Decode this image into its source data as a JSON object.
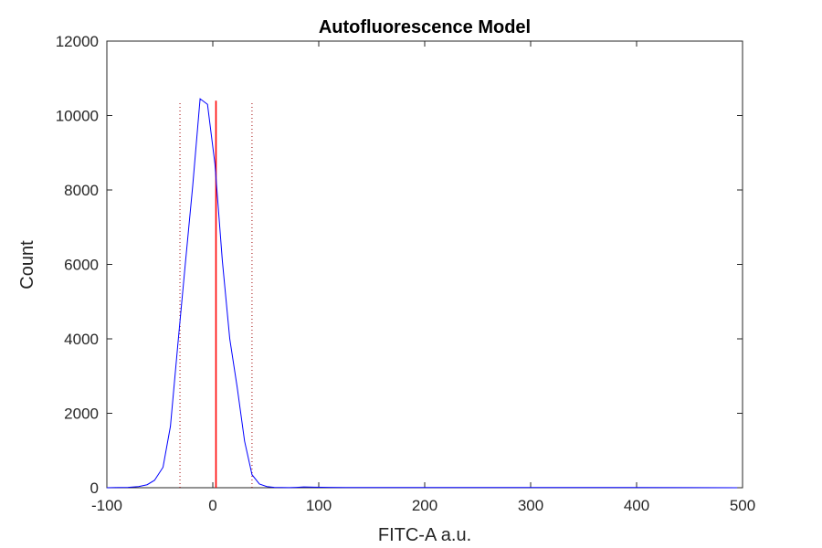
{
  "chart_data": {
    "type": "line",
    "title": "Autofluorescence Model",
    "xlabel": "FITC-A a.u.",
    "ylabel": "Count",
    "xlim": [
      -100,
      500
    ],
    "ylim": [
      0,
      12000
    ],
    "xticks": [
      -100,
      0,
      100,
      200,
      300,
      400,
      500
    ],
    "yticks": [
      0,
      2000,
      4000,
      6000,
      8000,
      10000,
      12000
    ],
    "xtick_labels": [
      "-100",
      "0",
      "100",
      "200",
      "300",
      "400",
      "500"
    ],
    "ytick_labels": [
      "0",
      "2000",
      "4000",
      "6000",
      "8000",
      "10000",
      "12000"
    ],
    "grid": false,
    "series": [
      {
        "color": "#0000ff",
        "x": [
          -100,
          -90,
          -80,
          -70,
          -62,
          -55,
          -47,
          -40,
          -33,
          -26,
          -19,
          -12,
          -5,
          2,
          9,
          16,
          23,
          30,
          37,
          44,
          51,
          58,
          65,
          72,
          79,
          86,
          95,
          110,
          125,
          140,
          160,
          200,
          300,
          400,
          495
        ],
        "y": [
          0,
          5,
          10,
          30,
          80,
          200,
          550,
          1650,
          3850,
          6000,
          8100,
          10450,
          10300,
          8700,
          6100,
          4000,
          2700,
          1250,
          350,
          100,
          30,
          10,
          5,
          2,
          10,
          20,
          15,
          10,
          5,
          5,
          5,
          5,
          5,
          5,
          0
        ]
      }
    ],
    "vlines": [
      {
        "x": 3,
        "y_max": 10400,
        "style": "solid",
        "color": "#ff0000"
      },
      {
        "x": -31,
        "y_max": 10350,
        "style": "dotted",
        "color": "#a00000"
      },
      {
        "x": 37,
        "y_max": 10350,
        "style": "dotted",
        "color": "#a00000"
      }
    ]
  }
}
